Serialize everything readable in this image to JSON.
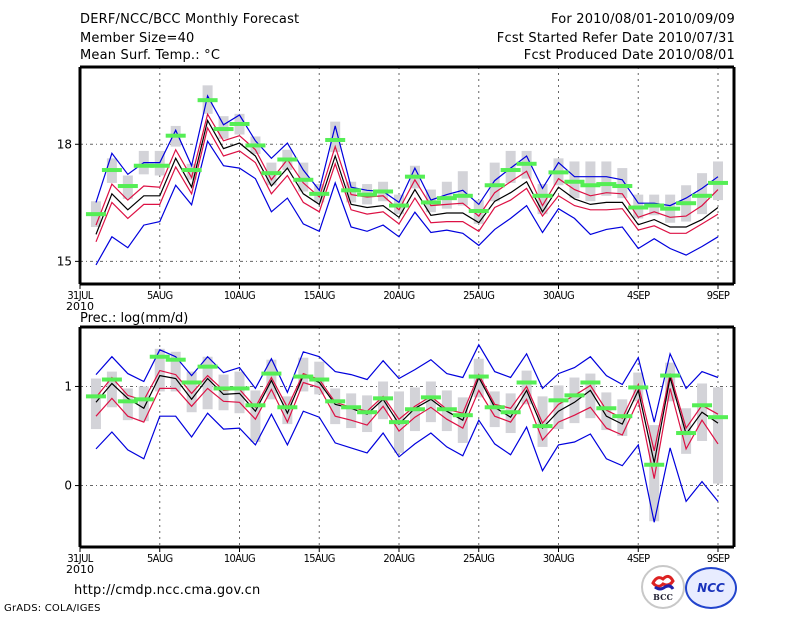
{
  "header": {
    "title": "DERF/NCC/BCC Monthly Forecast",
    "member_size": "Member Size=40",
    "variable1_label": "Mean Surf. Temp.: °C",
    "period": "For 2010/08/01-2010/09/09",
    "started": "Fcst Started Refer Date 2010/07/31",
    "produced": "Fcst Produced Date 2010/08/01"
  },
  "footer": {
    "url": "http://cmdp.ncc.cma.gov.cn",
    "credit": "GrADS: COLA/IGES",
    "logo1": "BCC",
    "logo2": "NCC"
  },
  "colors": {
    "max_min": "#0000dd",
    "quartile": "#dd1144",
    "mean": "#000000",
    "observed": "#55ee55",
    "spread_box": "#d3d3d8",
    "grid": "#666666"
  },
  "chart_data": [
    {
      "type": "line",
      "title": "Mean Surf. Temp.: °C",
      "xlabel": "",
      "ylabel": "",
      "ylim": [
        14.42,
        19.98
      ],
      "yticks": [
        15,
        18
      ],
      "ytick_labels": [
        "15",
        "18"
      ],
      "xlim_days": [
        0,
        41
      ],
      "xticks_day": [
        0,
        5,
        10,
        15,
        20,
        25,
        30,
        35,
        40
      ],
      "xtick_labels": [
        "31JUL",
        "5AUG",
        "10AUG",
        "15AUG",
        "20AUG",
        "25AUG",
        "30AUG",
        "4SEP",
        "9SEP"
      ],
      "xtick_sublabel": "2010",
      "grid": true,
      "days": [
        1,
        2,
        3,
        4,
        5,
        6,
        7,
        8,
        9,
        10,
        11,
        12,
        13,
        14,
        15,
        16,
        17,
        18,
        19,
        20,
        21,
        22,
        23,
        24,
        25,
        26,
        27,
        28,
        29,
        30,
        31,
        32,
        33,
        34,
        35,
        36,
        37,
        38,
        39,
        40
      ],
      "series": [
        {
          "name": "max",
          "color_key": "max_min",
          "values": [
            16.51,
            17.77,
            17.23,
            17.53,
            17.53,
            18.36,
            17.45,
            19.24,
            18.5,
            18.75,
            18.09,
            17.64,
            18.03,
            17.34,
            16.82,
            18.47,
            16.9,
            16.82,
            16.79,
            16.51,
            17.39,
            16.57,
            16.71,
            16.82,
            16.46,
            17.07,
            17.39,
            17.7,
            16.87,
            17.53,
            17.17,
            17.17,
            17.17,
            17.09,
            16.49,
            16.49,
            16.43,
            16.62,
            16.87,
            17.17
          ]
        },
        {
          "name": "upper",
          "color_key": "quartile",
          "values": [
            15.93,
            16.98,
            16.57,
            16.93,
            16.9,
            17.86,
            17.15,
            18.77,
            18.09,
            18.22,
            17.86,
            17.09,
            17.61,
            17.01,
            16.65,
            17.94,
            16.71,
            16.65,
            16.68,
            16.32,
            17.09,
            16.43,
            16.46,
            16.49,
            16.16,
            16.76,
            17.04,
            17.31,
            16.43,
            17.12,
            16.84,
            16.68,
            16.76,
            16.73,
            16.13,
            16.27,
            16.13,
            16.16,
            16.43,
            16.84
          ]
        },
        {
          "name": "mean",
          "color_key": "mean",
          "values": [
            15.69,
            16.73,
            16.32,
            16.68,
            16.68,
            17.64,
            16.9,
            18.61,
            17.89,
            18.03,
            17.7,
            16.93,
            17.39,
            16.73,
            16.46,
            17.7,
            16.46,
            16.38,
            16.43,
            16.13,
            16.84,
            16.18,
            16.24,
            16.24,
            15.99,
            16.54,
            16.76,
            17.04,
            16.27,
            16.9,
            16.6,
            16.46,
            16.51,
            16.51,
            15.94,
            16.07,
            15.88,
            15.88,
            16.07,
            16.38
          ]
        },
        {
          "name": "lower",
          "color_key": "quartile",
          "values": [
            15.5,
            16.51,
            16.1,
            16.46,
            16.46,
            17.42,
            16.73,
            18.42,
            17.7,
            17.83,
            17.53,
            16.73,
            17.2,
            16.51,
            16.27,
            17.5,
            16.32,
            16.21,
            16.27,
            15.96,
            16.62,
            15.99,
            16.02,
            16.02,
            15.77,
            16.38,
            16.57,
            16.87,
            16.16,
            16.68,
            16.43,
            16.32,
            16.32,
            16.35,
            15.8,
            15.91,
            15.72,
            15.72,
            15.96,
            16.21
          ]
        },
        {
          "name": "min",
          "color_key": "max_min",
          "values": [
            14.91,
            15.63,
            15.35,
            15.93,
            16.02,
            16.95,
            16.45,
            18.08,
            17.45,
            17.39,
            17.12,
            16.27,
            16.62,
            15.96,
            15.77,
            17.01,
            15.88,
            15.77,
            15.93,
            15.63,
            16.26,
            15.74,
            15.8,
            15.72,
            15.41,
            15.82,
            16.1,
            16.43,
            15.74,
            16.35,
            16.1,
            15.69,
            15.82,
            15.88,
            15.33,
            15.58,
            15.33,
            15.16,
            15.38,
            15.63
          ]
        },
        {
          "name": "observed",
          "color_key": "observed",
          "marker": "bar",
          "values": [
            16.21,
            17.34,
            16.93,
            17.45,
            17.45,
            18.22,
            17.34,
            19.13,
            18.39,
            18.52,
            17.97,
            17.26,
            17.61,
            17.09,
            16.73,
            18.11,
            16.82,
            16.71,
            16.79,
            16.43,
            17.17,
            16.51,
            16.62,
            16.68,
            16.29,
            16.95,
            17.34,
            17.5,
            16.68,
            17.28,
            17.04,
            16.95,
            16.98,
            16.93,
            16.38,
            16.43,
            16.35,
            16.49,
            16.68,
            17.01
          ]
        }
      ],
      "spread_boxes": {
        "color_key": "spread_box",
        "high": [
          16.54,
          17.64,
          17.2,
          17.83,
          17.83,
          18.47,
          17.5,
          19.51,
          18.72,
          18.78,
          18.2,
          17.53,
          17.86,
          17.53,
          16.98,
          18.58,
          17.04,
          16.98,
          17.04,
          16.71,
          17.45,
          16.84,
          17.04,
          17.31,
          16.57,
          17.53,
          17.83,
          17.83,
          16.98,
          17.64,
          17.56,
          17.56,
          17.56,
          17.39,
          16.71,
          16.71,
          16.71,
          16.95,
          17.26,
          17.56
        ],
        "low": [
          15.88,
          17.01,
          16.6,
          17.23,
          17.2,
          17.94,
          17.09,
          18.78,
          18.14,
          18.25,
          17.75,
          16.95,
          17.34,
          16.79,
          16.51,
          17.8,
          16.51,
          16.46,
          16.54,
          16.21,
          16.87,
          16.26,
          16.35,
          16.43,
          15.96,
          16.54,
          17.01,
          17.12,
          16.21,
          16.95,
          16.62,
          16.54,
          16.68,
          16.62,
          16.1,
          16.18,
          15.99,
          16.02,
          16.21,
          16.57
        ]
      }
    },
    {
      "type": "line",
      "title": "Prec.: log(mm/d)",
      "xlabel": "",
      "ylabel": "",
      "ylim": [
        -0.62,
        1.6
      ],
      "yticks": [
        0,
        1
      ],
      "ytick_labels": [
        "0",
        "1"
      ],
      "xlim_days": [
        0,
        41
      ],
      "xticks_day": [
        0,
        5,
        10,
        15,
        20,
        25,
        30,
        35,
        40
      ],
      "xtick_labels": [
        "31JUL",
        "5AUG",
        "10AUG",
        "15AUG",
        "20AUG",
        "25AUG",
        "30AUG",
        "4SEP",
        "9SEP"
      ],
      "xtick_sublabel": "2010",
      "grid": true,
      "days": [
        1,
        2,
        3,
        4,
        5,
        6,
        7,
        8,
        9,
        10,
        11,
        12,
        13,
        14,
        15,
        16,
        17,
        18,
        19,
        20,
        21,
        22,
        23,
        24,
        25,
        26,
        27,
        28,
        29,
        30,
        31,
        32,
        33,
        34,
        35,
        36,
        37,
        38,
        39,
        40
      ],
      "series": [
        {
          "name": "max",
          "color_key": "max_min",
          "values": [
            1.12,
            1.3,
            1.13,
            1.05,
            1.37,
            1.3,
            1.11,
            1.3,
            1.14,
            1.19,
            0.98,
            1.28,
            0.94,
            1.35,
            1.3,
            1.15,
            1.12,
            1.07,
            1.26,
            1.08,
            1.17,
            1.27,
            1.13,
            1.09,
            1.42,
            1.15,
            1.09,
            1.33,
            0.98,
            1.13,
            1.19,
            1.3,
            1.11,
            1.02,
            1.29,
            0.64,
            1.33,
            0.98,
            1.15,
            1.09
          ]
        },
        {
          "name": "upper",
          "color_key": "quartile",
          "values": [
            0.89,
            1.09,
            0.91,
            0.86,
            1.16,
            1.12,
            0.93,
            1.11,
            0.96,
            0.97,
            0.79,
            1.09,
            0.79,
            1.13,
            1.07,
            0.84,
            0.79,
            0.75,
            0.9,
            0.67,
            0.8,
            0.9,
            0.77,
            0.73,
            1.12,
            0.82,
            0.78,
            1.0,
            0.63,
            0.82,
            0.91,
            1.01,
            0.76,
            0.68,
            1.02,
            0.35,
            1.13,
            0.58,
            0.81,
            0.72
          ]
        },
        {
          "name": "mean",
          "color_key": "mean",
          "values": [
            0.84,
            1.03,
            0.88,
            0.78,
            1.11,
            1.08,
            0.87,
            1.08,
            0.92,
            0.93,
            0.75,
            1.06,
            0.73,
            1.11,
            1.04,
            0.82,
            0.78,
            0.72,
            0.87,
            0.62,
            0.78,
            0.87,
            0.75,
            0.66,
            1.09,
            0.79,
            0.69,
            0.96,
            0.58,
            0.75,
            0.84,
            0.96,
            0.7,
            0.62,
            0.96,
            0.23,
            1.09,
            0.52,
            0.74,
            0.63
          ]
        },
        {
          "name": "lower",
          "color_key": "quartile",
          "values": [
            0.7,
            0.88,
            0.7,
            0.64,
            0.98,
            0.98,
            0.8,
            0.98,
            0.85,
            0.84,
            0.67,
            0.97,
            0.64,
            1.04,
            0.99,
            0.7,
            0.66,
            0.61,
            0.8,
            0.55,
            0.69,
            0.79,
            0.67,
            0.58,
            0.96,
            0.7,
            0.64,
            0.87,
            0.46,
            0.64,
            0.71,
            0.79,
            0.58,
            0.51,
            0.86,
            0.07,
            0.98,
            0.37,
            0.66,
            0.42
          ]
        },
        {
          "name": "min",
          "color_key": "max_min",
          "values": [
            0.37,
            0.54,
            0.36,
            0.27,
            0.7,
            0.7,
            0.49,
            0.73,
            0.57,
            0.58,
            0.41,
            0.72,
            0.41,
            0.75,
            0.69,
            0.43,
            0.38,
            0.33,
            0.53,
            0.29,
            0.42,
            0.53,
            0.39,
            0.3,
            0.66,
            0.42,
            0.31,
            0.59,
            0.15,
            0.41,
            0.44,
            0.52,
            0.27,
            0.2,
            0.41,
            -0.37,
            0.38,
            -0.16,
            0.04,
            -0.16
          ]
        },
        {
          "name": "observed",
          "color_key": "observed",
          "marker": "bar",
          "values": [
            0.9,
            1.07,
            0.85,
            0.87,
            1.3,
            1.27,
            1.04,
            1.2,
            0.98,
            0.98,
            0.81,
            1.13,
            0.79,
            1.1,
            1.07,
            0.85,
            0.79,
            0.74,
            0.88,
            0.64,
            0.77,
            0.89,
            0.77,
            0.71,
            1.1,
            0.79,
            0.74,
            1.04,
            0.6,
            0.86,
            0.91,
            1.04,
            0.78,
            0.7,
            0.99,
            0.21,
            1.11,
            0.53,
            0.81,
            0.69
          ]
        }
      ],
      "spread_boxes": {
        "color_key": "spread_box",
        "high": [
          1.08,
          1.15,
          0.98,
          1.0,
          1.38,
          1.35,
          1.15,
          1.3,
          1.12,
          1.15,
          0.96,
          1.27,
          0.9,
          1.29,
          1.25,
          0.98,
          0.93,
          0.91,
          1.05,
          0.95,
          0.99,
          1.05,
          0.96,
          0.89,
          1.28,
          0.95,
          0.93,
          1.16,
          0.9,
          1.01,
          1.09,
          1.13,
          0.94,
          0.87,
          1.14,
          0.61,
          1.24,
          0.78,
          1.03,
          0.99
        ],
        "low": [
          0.57,
          0.79,
          0.66,
          0.65,
          0.95,
          0.95,
          0.74,
          0.77,
          0.76,
          0.73,
          0.44,
          0.87,
          0.62,
          0.95,
          0.92,
          0.62,
          0.58,
          0.54,
          0.67,
          0.33,
          0.55,
          0.64,
          0.55,
          0.43,
          0.89,
          0.59,
          0.53,
          0.82,
          0.39,
          0.57,
          0.63,
          0.68,
          0.56,
          0.5,
          0.85,
          -0.36,
          0.85,
          0.32,
          0.45,
          0.02
        ]
      }
    }
  ]
}
